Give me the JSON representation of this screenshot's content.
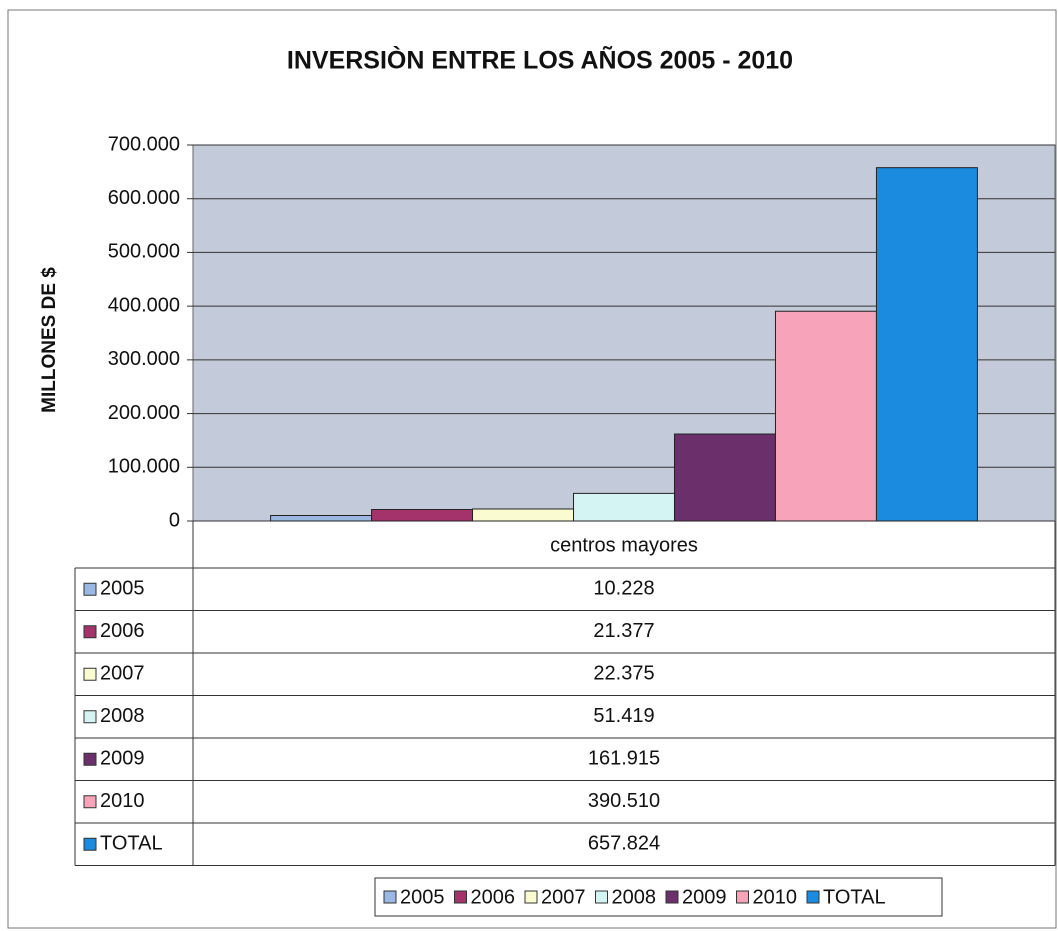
{
  "chart_data": {
    "type": "bar",
    "title": "INVERSIÒN ENTRE LOS AÑOS 2005 - 2010",
    "ylabel": "MILLONES DE $",
    "categories": [
      "centros mayores"
    ],
    "series": [
      {
        "name": "2005",
        "color": "#9bb7e3",
        "values": [
          10228
        ],
        "value_labels": [
          "10.228"
        ]
      },
      {
        "name": "2006",
        "color": "#a3336a",
        "values": [
          21377
        ],
        "value_labels": [
          "21.377"
        ]
      },
      {
        "name": "2007",
        "color": "#fbfbd2",
        "values": [
          22375
        ],
        "value_labels": [
          "22.375"
        ]
      },
      {
        "name": "2008",
        "color": "#d4f3f3",
        "values": [
          51419
        ],
        "value_labels": [
          "51.419"
        ]
      },
      {
        "name": "2009",
        "color": "#6b2f6c",
        "values": [
          161915
        ],
        "value_labels": [
          "161.915"
        ]
      },
      {
        "name": "2010",
        "color": "#f7a3b9",
        "values": [
          390510
        ],
        "value_labels": [
          "390.510"
        ]
      },
      {
        "name": "TOTAL",
        "color": "#1b8be0",
        "values": [
          657824
        ],
        "value_labels": [
          "657.824"
        ]
      }
    ],
    "ylim": [
      0,
      700000
    ],
    "yticks": [
      0,
      {
        "value": 100000,
        "label": "100.000"
      },
      {
        "value": 200000,
        "label": "200.000"
      },
      {
        "value": 300000,
        "label": "300.000"
      },
      {
        "value": 400000,
        "label": "400.000"
      },
      {
        "value": 500000,
        "label": "500.000"
      },
      {
        "value": 600000,
        "label": "600.000"
      },
      {
        "value": 700000,
        "label": "700.000"
      }
    ],
    "grid": true,
    "legend": "bottom"
  }
}
